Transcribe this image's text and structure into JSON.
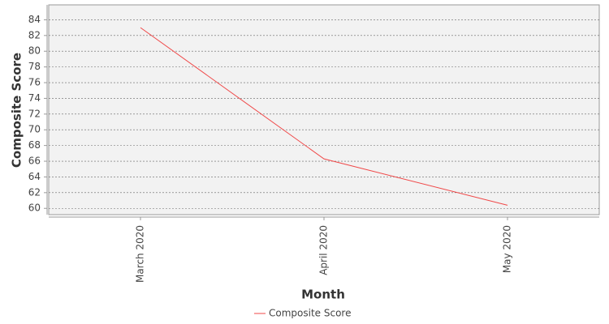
{
  "chart_data": {
    "type": "line",
    "x_label": "Month",
    "y_label": "Composite Score",
    "categories": [
      "March 2020",
      "April 2020",
      "May 2020"
    ],
    "series": [
      {
        "name": "Composite Score",
        "color": "#f04848",
        "values": [
          83,
          66.3,
          60.4
        ]
      }
    ],
    "ylim": [
      59.2,
      85.9
    ],
    "yticks": [
      60,
      62,
      64,
      66,
      68,
      70,
      72,
      74,
      76,
      78,
      80,
      82,
      84
    ],
    "grid": true,
    "legend": "bottom"
  }
}
